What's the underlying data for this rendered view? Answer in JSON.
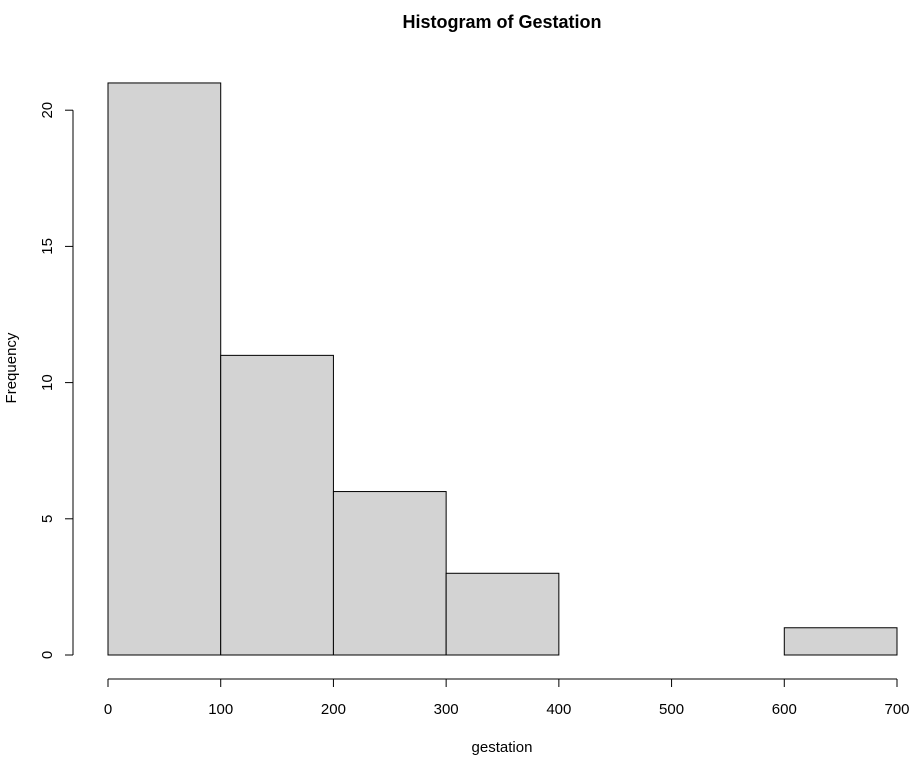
{
  "chart_data": {
    "type": "bar",
    "title": "Histogram of Gestation",
    "xlabel": "gestation",
    "ylabel": "Frequency",
    "bin_edges": [
      0,
      100,
      200,
      300,
      400,
      500,
      600,
      700
    ],
    "values": [
      21,
      11,
      6,
      3,
      0,
      0,
      1
    ],
    "xlim": [
      0,
      700
    ],
    "ylim": [
      0,
      21
    ],
    "x_ticks": [
      "0",
      "100",
      "200",
      "300",
      "400",
      "500",
      "600",
      "700"
    ],
    "y_ticks": [
      "0",
      "5",
      "10",
      "15",
      "20"
    ],
    "bar_fill": "#d3d3d3",
    "bar_stroke": "#000000",
    "grid": false
  }
}
